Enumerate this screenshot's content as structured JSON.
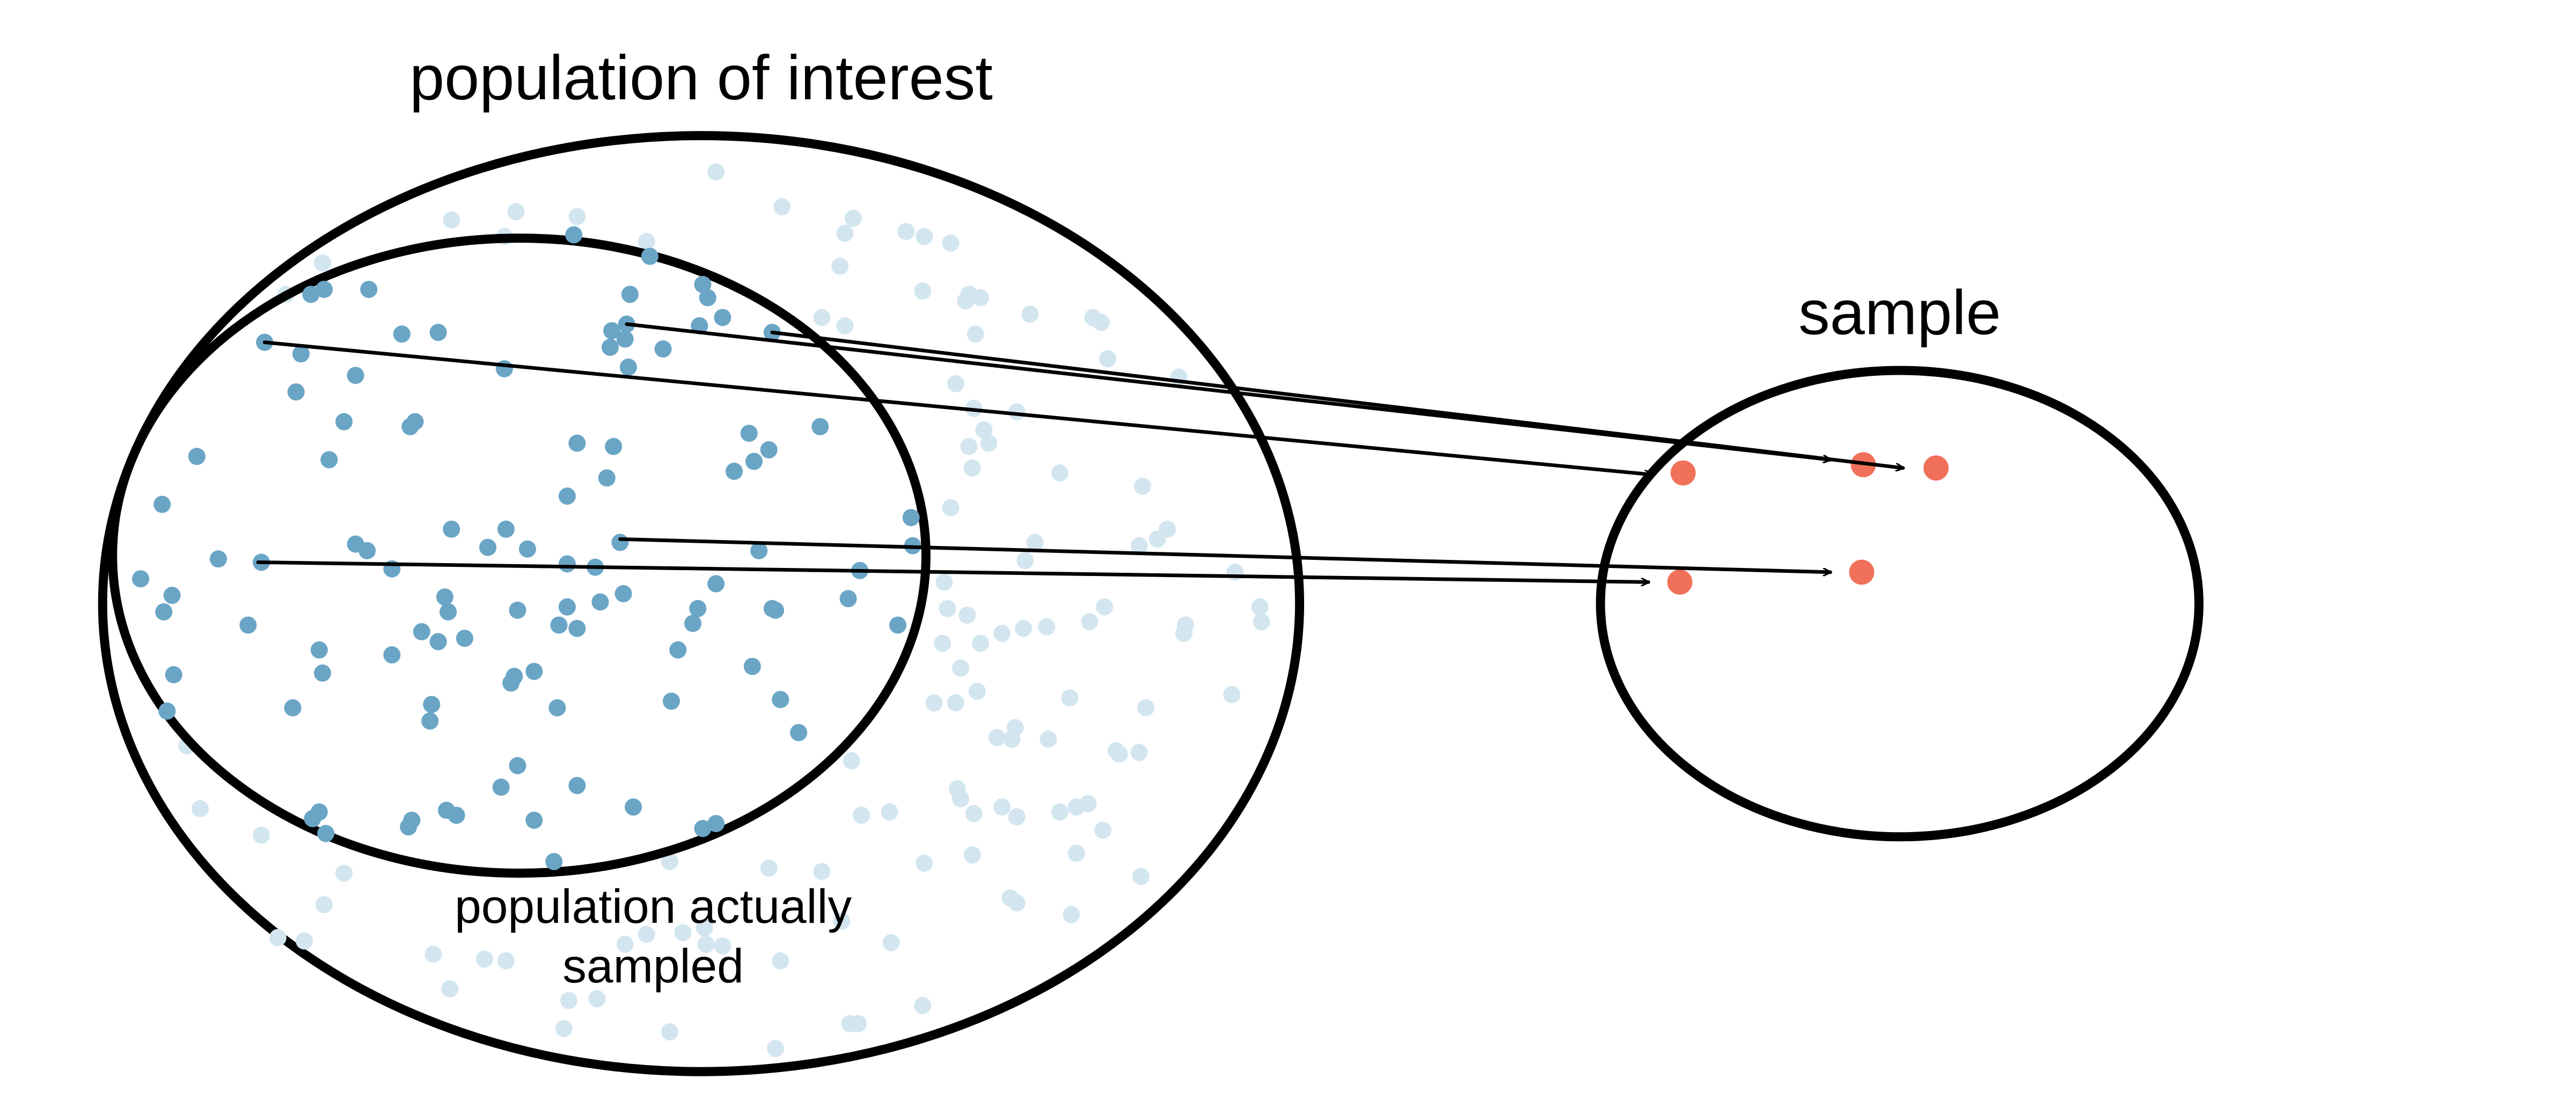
{
  "labels": {
    "population_of_interest": "population of interest",
    "population_actually_sampled_line1": "population actually",
    "population_actually_sampled_line2": "sampled",
    "sample": "sample"
  },
  "colors": {
    "sampled_point": "#6aa5c6",
    "unsampled_point": "#d3e6f0",
    "sample_point": "#f0705a",
    "outline": "#000000"
  },
  "arrows_count": 5,
  "sample_points_count": 5
}
